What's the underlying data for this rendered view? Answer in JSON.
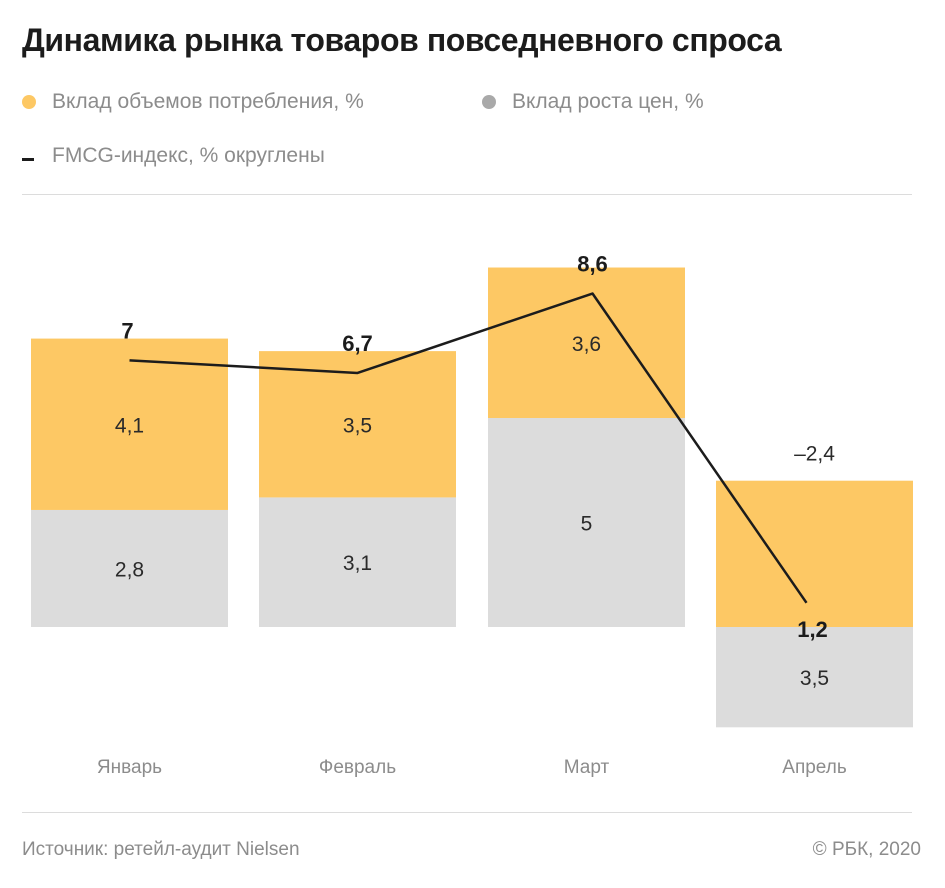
{
  "title": "Динамика рынка товаров повседневного спроса",
  "legend": {
    "volume_label": "Вклад объемов потребления, %",
    "price_label": "Вклад роста цен, %",
    "index_label": "FMCG-индекс, % округлены"
  },
  "colors": {
    "volume": "#fdc864",
    "price": "#dcdcdc",
    "index_line": "#1c1c1c",
    "price_dot": "#a9a9a9",
    "axis_label": "#8c8c8c"
  },
  "footer": {
    "source": "Источник: ретейл-аудит Nielsen",
    "copyright": "© РБК, 2020"
  },
  "chart_data": {
    "type": "bar",
    "stacked": true,
    "categories": [
      "Январь",
      "Февраль",
      "Март",
      "Апрель"
    ],
    "series": [
      {
        "name": "Вклад роста цен, %",
        "values": [
          2.8,
          3.1,
          5,
          3.5
        ],
        "labels": [
          "2,8",
          "3,1",
          "5",
          "3,5"
        ]
      },
      {
        "name": "Вклад объемов потребления, %",
        "values": [
          4.1,
          3.5,
          3.6,
          -2.4
        ],
        "labels": [
          "4,1",
          "3,5",
          "3,6",
          "–2,4"
        ]
      }
    ],
    "line": {
      "name": "FMCG-индекс, % округлены",
      "values": [
        7,
        6.7,
        8.6,
        1.2
      ],
      "labels": [
        "7",
        "6,7",
        "8,6",
        "1,2"
      ]
    },
    "ylim": [
      -2.4,
      8.6
    ],
    "grid": false,
    "legend_position": "top"
  }
}
